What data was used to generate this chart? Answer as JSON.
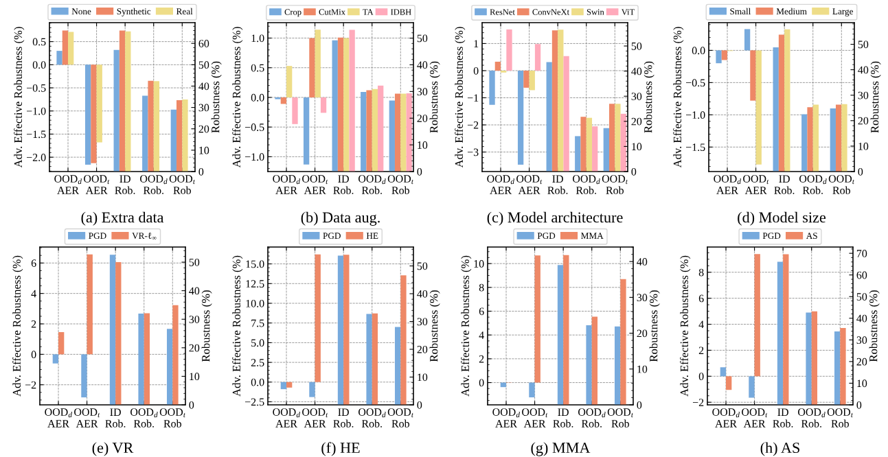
{
  "chart_data": [
    {
      "type": "bar",
      "title": "(a) Extra data",
      "ylabel": "Adv. Effective Robustness (%)",
      "y2label": "Robustness (%)",
      "grid": true,
      "legend": "top",
      "categories": [
        "OOD$_{d}$\nAER",
        "OOD$_{t}$\nAER",
        "ID\nRob.",
        "OOD$_{d}$\nRob.",
        "OOD$_{t}$\nRob"
      ],
      "ylim": [
        -2.31,
        0.91
      ],
      "yticks": [
        {
          "value": -2.0,
          "label": "−2.0"
        },
        {
          "value": -1.5,
          "label": "−1.5"
        },
        {
          "value": -1.0,
          "label": "−1.0"
        },
        {
          "value": -0.5,
          "label": "−0.5"
        },
        {
          "value": 0,
          "label": "0.0"
        },
        0.5
      ],
      "y2lim": [
        0,
        69.7
      ],
      "y2ticks": [
        0,
        10,
        20,
        30,
        40,
        50,
        60
      ],
      "series": [
        {
          "name": "None",
          "color": "#77aadd",
          "values": [
            0.3,
            -2.16,
            null,
            null,
            null
          ]
        },
        {
          "name": "Synthetic",
          "color": "#ee8866",
          "values": [
            0.74,
            -2.13,
            null,
            null,
            null
          ]
        },
        {
          "name": "Real",
          "color": "#eedd88",
          "values": [
            0.71,
            -1.68,
            null,
            null,
            null
          ]
        },
        {
          "color": "#77aadd",
          "axis": "y2",
          "values": [
            null,
            null,
            56.9,
            35.5,
            29.0
          ]
        },
        {
          "color": "#ee8866",
          "axis": "y2",
          "values": [
            null,
            null,
            66.0,
            42.5,
            33.4
          ]
        },
        {
          "color": "#eedd88",
          "axis": "y2",
          "values": [
            null,
            null,
            65.6,
            42.3,
            33.7
          ]
        }
      ]
    },
    {
      "type": "bar",
      "title": "(b) Data aug.",
      "ylabel": "Adv. Effective Robustness (%)",
      "y2label": "Robustness (%)",
      "grid": true,
      "legend": "top",
      "categories": [
        "OOD$_{d}$\nAER",
        "OOD$_{t}$\nAER",
        "ID\nRob.",
        "OOD$_{d}$\nRob.",
        "OOD$_{t}$\nRob"
      ],
      "ylim": [
        -1.25,
        1.26
      ],
      "yticks": [
        {
          "value": -1.0,
          "label": "−1.0"
        },
        {
          "value": -0.5,
          "label": "−0.5"
        },
        {
          "value": 0,
          "label": "0.0"
        },
        0.5,
        {
          "value": 1,
          "label": "1.0"
        }
      ],
      "y2lim": [
        0,
        55.8
      ],
      "y2ticks": [
        0,
        10,
        20,
        30,
        40,
        50
      ],
      "series": [
        {
          "name": "Crop",
          "color": "#77aadd",
          "values": [
            -0.03,
            -1.13,
            null,
            null,
            null
          ]
        },
        {
          "name": "CutMix",
          "color": "#ee8866",
          "values": [
            -0.11,
            1.0,
            null,
            null,
            null
          ]
        },
        {
          "name": "TA",
          "color": "#eedd88",
          "values": [
            0.53,
            1.14,
            null,
            null,
            null
          ]
        },
        {
          "name": "IDBH",
          "color": "#ffaabb",
          "values": [
            -0.45,
            -0.26,
            null,
            null,
            null
          ]
        },
        {
          "color": "#77aadd",
          "axis": "y2",
          "values": [
            null,
            null,
            49.2,
            29.8,
            26.6
          ]
        },
        {
          "color": "#ee8866",
          "axis": "y2",
          "values": [
            null,
            null,
            50.2,
            30.5,
            29.2
          ]
        },
        {
          "color": "#eedd88",
          "axis": "y2",
          "values": [
            null,
            null,
            50.0,
            30.9,
            29.2
          ]
        },
        {
          "color": "#ffaabb",
          "axis": "y2",
          "values": [
            null,
            null,
            53.1,
            32.2,
            29.3
          ]
        }
      ]
    },
    {
      "type": "bar",
      "title": "(c) Model architecture",
      "ylabel": "Adv. Effective Robustness (%)",
      "y2label": "Robustness (%)",
      "grid": true,
      "legend": "top",
      "categories": [
        "OOD$_{d}$\nAER",
        "OOD$_{t}$\nAER",
        "ID\nRob.",
        "OOD$_{d}$\nRob.",
        "OOD$_{t}$\nRob"
      ],
      "ylim": [
        -3.72,
        1.77
      ],
      "yticks": [
        {
          "value": -3,
          "label": "−3"
        },
        {
          "value": -2,
          "label": "−2"
        },
        {
          "value": -1,
          "label": "−1"
        },
        0,
        1
      ],
      "y2lim": [
        0,
        59.3
      ],
      "y2ticks": [
        0,
        10,
        20,
        30,
        40,
        50
      ],
      "series": [
        {
          "name": "ResNet",
          "color": "#77aadd",
          "values": [
            -1.26,
            -3.47,
            null,
            null,
            null
          ]
        },
        {
          "name": "ConvNeXt",
          "color": "#ee8866",
          "values": [
            0.33,
            -0.63,
            null,
            null,
            null
          ]
        },
        {
          "name": "Swin",
          "color": "#eedd88",
          "values": [
            -0.07,
            -0.72,
            null,
            null,
            null
          ]
        },
        {
          "name": "ViT",
          "color": "#ffaabb",
          "values": [
            1.52,
            0.98,
            null,
            null,
            null
          ]
        },
        {
          "color": "#77aadd",
          "axis": "y2",
          "values": [
            null,
            null,
            43.6,
            14.1,
            17.3
          ]
        },
        {
          "color": "#ee8866",
          "axis": "y2",
          "values": [
            null,
            null,
            56.2,
            21.8,
            27.0
          ]
        },
        {
          "color": "#eedd88",
          "axis": "y2",
          "values": [
            null,
            null,
            56.5,
            21.4,
            27.0
          ]
        },
        {
          "color": "#ffaabb",
          "axis": "y2",
          "values": [
            null,
            null,
            46.0,
            18.0,
            23.0
          ]
        }
      ]
    },
    {
      "type": "bar",
      "title": "(d) Model size",
      "ylabel": "Adv. Effective Robustness (%)",
      "y2label": "Robustness (%)",
      "grid": true,
      "legend": "top",
      "categories": [
        "OOD$_{d}$\nAER",
        "OOD$_{t}$\nAER",
        "ID\nRob.",
        "OOD$_{d}$\nRob.",
        "OOD$_{t}$\nRob"
      ],
      "ylim": [
        -1.88,
        0.43
      ],
      "yticks": [
        {
          "value": -1.5,
          "label": "−1.5"
        },
        {
          "value": -1.0,
          "label": "−1.0"
        },
        {
          "value": -0.5,
          "label": "−0.5"
        },
        {
          "value": 0,
          "label": "0.0"
        }
      ],
      "y2lim": [
        0,
        58.5
      ],
      "y2ticks": [
        0,
        10,
        20,
        30,
        40,
        50
      ],
      "series": [
        {
          "name": "Small",
          "color": "#77aadd",
          "values": [
            -0.2,
            0.33,
            null,
            null,
            null
          ]
        },
        {
          "name": "Medium",
          "color": "#ee8866",
          "values": [
            -0.15,
            -0.78,
            null,
            null,
            null
          ]
        },
        {
          "name": "Large",
          "color": "#eedd88",
          "values": [
            -0.01,
            -1.77,
            null,
            null,
            null
          ]
        },
        {
          "color": "#77aadd",
          "axis": "y2",
          "values": [
            null,
            null,
            48.8,
            22.5,
            24.8
          ]
        },
        {
          "color": "#ee8866",
          "axis": "y2",
          "values": [
            null,
            null,
            53.8,
            25.3,
            26.3
          ]
        },
        {
          "color": "#eedd88",
          "axis": "y2",
          "values": [
            null,
            null,
            55.9,
            26.3,
            26.5
          ]
        }
      ]
    },
    {
      "type": "bar",
      "title": "(e) VR",
      "ylabel": "Adv. Effective Robustness (%)",
      "y2label": "Robustness (%)",
      "grid": true,
      "legend": "top",
      "categories": [
        "OOD$_{d}$\nAER",
        "OOD$_{t}$\nAER",
        "ID\nRob.",
        "OOD$_{d}$\nRob.",
        "OOD$_{t}$\nRob"
      ],
      "ylim": [
        -3.32,
        7.05
      ],
      "yticks": [
        {
          "value": -2,
          "label": "−2"
        },
        0,
        2,
        4,
        6
      ],
      "y2lim": [
        0,
        55.3
      ],
      "y2ticks": [
        0,
        10,
        20,
        30,
        40,
        50
      ],
      "series": [
        {
          "name": "PGD",
          "color": "#77aadd",
          "values": [
            -0.6,
            -2.83,
            null,
            null,
            null
          ]
        },
        {
          "name": "VR-ℓ$_{∞}$",
          "color": "#ee8866",
          "values": [
            1.46,
            6.56,
            null,
            null,
            null
          ]
        },
        {
          "color": "#77aadd",
          "axis": "y2",
          "values": [
            null,
            null,
            52.6,
            32.0,
            26.6
          ]
        },
        {
          "color": "#ee8866",
          "axis": "y2",
          "values": [
            null,
            null,
            50.0,
            32.1,
            34.9
          ]
        }
      ]
    },
    {
      "type": "bar",
      "title": "(f) HE",
      "ylabel": "Adv. Effective Robustness (%)",
      "y2label": "Robustness (%)",
      "grid": true,
      "legend": "top",
      "categories": [
        "OOD$_{d}$\nAER",
        "OOD$_{t}$\nAER",
        "ID\nRob.",
        "OOD$_{d}$\nRob.",
        "OOD$_{t}$\nRob"
      ],
      "ylim": [
        -2.89,
        17.14
      ],
      "yticks": [
        {
          "value": -2.5,
          "label": "−2.5"
        },
        {
          "value": 0,
          "label": "0.0"
        },
        2.5,
        {
          "value": 5,
          "label": "5.0"
        },
        7.5,
        {
          "value": 10,
          "label": "10.0"
        },
        12.5,
        {
          "value": 15,
          "label": "15.0"
        }
      ],
      "y2lim": [
        0,
        56.8
      ],
      "y2ticks": [
        0,
        10,
        20,
        30,
        40,
        50
      ],
      "series": [
        {
          "name": "PGD",
          "color": "#77aadd",
          "values": [
            -0.9,
            -1.9,
            null,
            null,
            null
          ]
        },
        {
          "name": "HE",
          "color": "#ee8866",
          "values": [
            -0.7,
            16.2,
            null,
            null,
            null
          ]
        },
        {
          "color": "#77aadd",
          "axis": "y2",
          "values": [
            null,
            null,
            53.7,
            32.7,
            28.0
          ]
        },
        {
          "color": "#ee8866",
          "axis": "y2",
          "values": [
            null,
            null,
            54.0,
            32.9,
            46.6
          ]
        }
      ]
    },
    {
      "type": "bar",
      "title": "(g) MMA",
      "ylabel": "Adv. Effective Robustness (%)",
      "y2label": "Robustness (%)",
      "grid": true,
      "legend": "top",
      "categories": [
        "OOD$_{d}$\nAER",
        "OOD$_{t}$\nAER",
        "ID\nRob.",
        "OOD$_{d}$\nRob.",
        "OOD$_{t}$\nRob"
      ],
      "ylim": [
        -1.87,
        11.39
      ],
      "yticks": [
        0,
        2,
        4,
        6,
        8,
        10
      ],
      "y2lim": [
        0,
        44.05
      ],
      "y2ticks": [
        0,
        10,
        20,
        30,
        40
      ],
      "series": [
        {
          "name": "PGD",
          "color": "#77aadd",
          "values": [
            -0.38,
            -1.24,
            null,
            null,
            null
          ]
        },
        {
          "name": "MMA",
          "color": "#ee8866",
          "values": [
            0.02,
            10.69,
            null,
            null,
            null
          ]
        },
        {
          "color": "#77aadd",
          "axis": "y2",
          "values": [
            null,
            null,
            39.0,
            22.2,
            21.9
          ]
        },
        {
          "color": "#ee8866",
          "axis": "y2",
          "values": [
            null,
            null,
            41.8,
            24.6,
            35.1
          ]
        }
      ]
    },
    {
      "type": "bar",
      "title": "(h) AS",
      "ylabel": "Adv. Effective Robustness (%)",
      "y2label": "Robustness (%)",
      "grid": true,
      "legend": "top",
      "categories": [
        "OOD$_{d}$\nAER",
        "OOD$_{t}$\nAER",
        "ID\nRob.",
        "OOD$_{d}$\nRob.",
        "OOD$_{t}$\nRob"
      ],
      "ylim": [
        -2.2,
        9.94
      ],
      "yticks": [
        {
          "value": -2,
          "label": "−2"
        },
        0,
        2,
        4,
        6,
        8
      ],
      "y2lim": [
        0,
        72.9
      ],
      "y2ticks": [
        0,
        10,
        20,
        30,
        40,
        50,
        60,
        70
      ],
      "series": [
        {
          "name": "PGD",
          "color": "#77aadd",
          "values": [
            0.69,
            -1.65,
            null,
            null,
            null
          ]
        },
        {
          "name": "AS",
          "color": "#ee8866",
          "values": [
            -1.05,
            9.4,
            null,
            null,
            null
          ]
        },
        {
          "color": "#77aadd",
          "axis": "y2",
          "values": [
            null,
            null,
            66.1,
            42.6,
            33.9
          ]
        },
        {
          "color": "#ee8866",
          "axis": "y2",
          "values": [
            null,
            null,
            69.6,
            43.2,
            35.5
          ]
        }
      ]
    }
  ]
}
